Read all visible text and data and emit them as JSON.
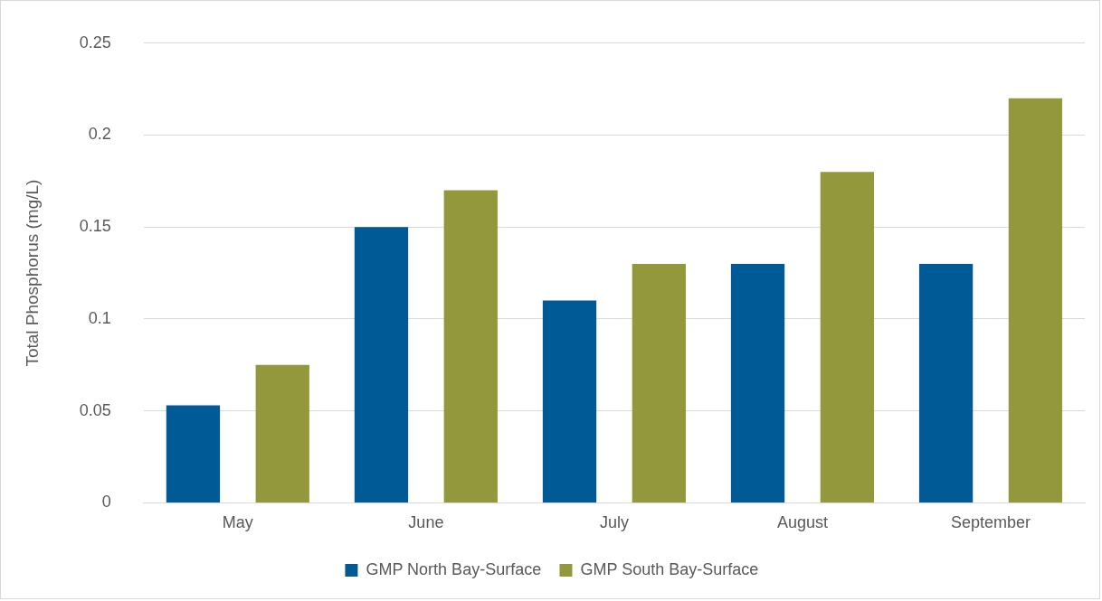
{
  "chart_data": {
    "type": "bar",
    "ylabel": "Total Phosphorus (mg/L)",
    "categories": [
      "May",
      "June",
      "July",
      "August",
      "September"
    ],
    "series": [
      {
        "name": "GMP North Bay-Surface",
        "color": "#005a96",
        "values": [
          0.053,
          0.15,
          0.11,
          0.13,
          0.13
        ]
      },
      {
        "name": "GMP South Bay-Surface",
        "color": "#92983b",
        "values": [
          0.075,
          0.17,
          0.13,
          0.18,
          0.22
        ]
      }
    ],
    "ylim": [
      0,
      0.25
    ],
    "yticks": [
      0,
      0.05,
      0.1,
      0.15,
      0.2,
      0.25
    ],
    "grid": "y",
    "legend": "bottom"
  }
}
